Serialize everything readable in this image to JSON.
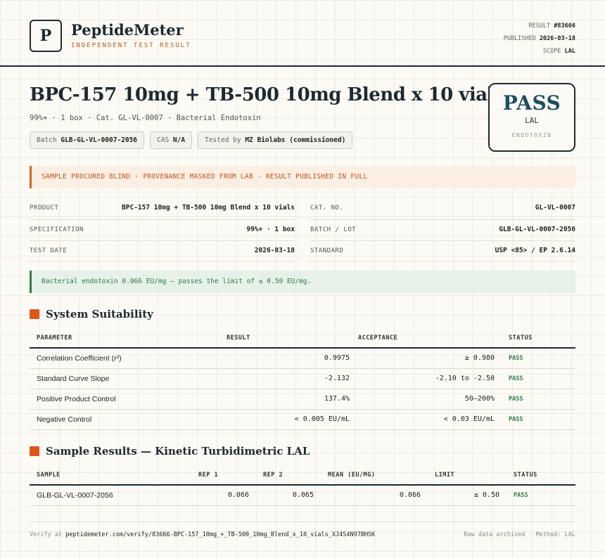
{
  "brand": {
    "logo_letter": "P",
    "name": "PeptideMeter",
    "tagline": "INDEPENDENT TEST RESULT"
  },
  "meta": {
    "result_label": "RESULT",
    "result_value": "#83666",
    "published_label": "PUBLISHED",
    "published_value": "2026-03-18",
    "scope_label": "SCOPE",
    "scope_value": "LAL"
  },
  "product": {
    "title": "BPC-157 10mg + TB-500 10mg Blend x 10 vials",
    "subtitle": "99%+ · 1 box · Cat. GL-VL-0007 · Bacterial Endotoxin",
    "chips": {
      "batch_label": "Batch",
      "batch_value": "GLB-GL-VL-0007-2056",
      "cas_label": "CAS",
      "cas_value": "N/A",
      "tested_label": "Tested by",
      "tested_value": "MZ Biolabs (commissioned)"
    }
  },
  "verdict": {
    "result": "PASS",
    "method": "LAL",
    "scope": "ENDOTOXIN"
  },
  "banner": "SAMPLE PROCURED BLIND · PROVENANCE MASKED FROM LAB · RESULT PUBLISHED IN FULL",
  "info": {
    "product_label": "PRODUCT",
    "product_value": "BPC-157 10mg + TB-500 10mg Blend x 10 vials",
    "spec_label": "SPECIFICATION",
    "spec_value": "99%+ · 1 box",
    "date_label": "TEST DATE",
    "date_value": "2026-03-18",
    "cat_label": "CAT. NO.",
    "cat_value": "GL-VL-0007",
    "batch_label": "BATCH / LOT",
    "batch_value": "GLB-GL-VL-0007-2056",
    "standard_label": "STANDARD",
    "standard_value": "USP <85> / EP 2.6.14"
  },
  "note": "Bacterial endotoxin 0.066 EU/mg — passes the limit of ≤ 0.50 EU/mg.",
  "suitability": {
    "title": "System Suitability",
    "headers": [
      "PARAMETER",
      "RESULT",
      "ACCEPTANCE",
      "STATUS"
    ],
    "rows": [
      {
        "parameter": "Correlation Coefficient (r²)",
        "result": "0.9975",
        "acceptance": "≥ 0.980",
        "status": "PASS"
      },
      {
        "parameter": "Standard Curve Slope",
        "result": "-2.132",
        "acceptance": "-2.10 to -2.50",
        "status": "PASS"
      },
      {
        "parameter": "Positive Product Control",
        "result": "137.4%",
        "acceptance": "50–200%",
        "status": "PASS"
      },
      {
        "parameter": "Negative Control",
        "result": "< 0.005 EU/mL",
        "acceptance": "< 0.03 EU/mL",
        "status": "PASS"
      }
    ]
  },
  "samples": {
    "title": "Sample Results — Kinetic Turbidimetric LAL",
    "headers": [
      "SAMPLE",
      "REP 1",
      "REP 2",
      "MEAN (EU/MG)",
      "LIMIT",
      "STATUS"
    ],
    "rows": [
      {
        "sample": "GLB-GL-VL-0007-2056",
        "rep1": "0.066",
        "rep2": "0.065",
        "mean": "0.066",
        "limit": "≤ 0.50",
        "status": "PASS"
      }
    ]
  },
  "footer": {
    "verify_label": "Verify at",
    "verify_url": "peptidemeter.com/verify/83666-BPC-157_10mg_+_TB-500_10mg_Blend_x_10_vials_XJ4S4N97BHSK",
    "right": "Raw data archived · Method: LAL"
  },
  "colors": {
    "accent": "#e0561a",
    "navy": "#1e2a30",
    "pass_green": "#2e7d45",
    "pass_blue": "#1f4e5f"
  }
}
